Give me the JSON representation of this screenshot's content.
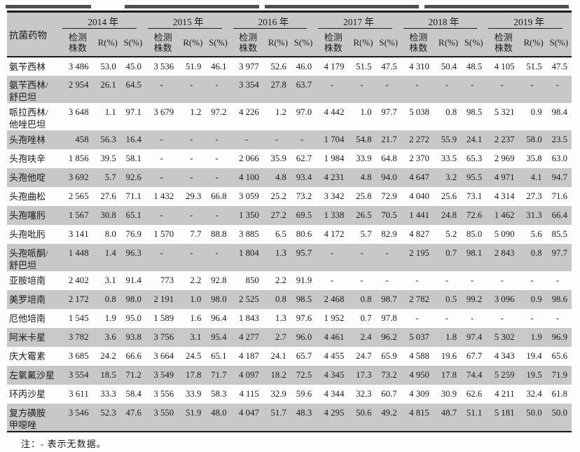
{
  "artifacts": {
    "segments": [
      [
        8,
        122
      ],
      [
        178,
        182
      ],
      [
        190,
        180
      ],
      [
        378,
        220
      ],
      [
        606,
        206
      ]
    ]
  },
  "table": {
    "corner_label": "抗菌药物",
    "years": [
      "2014 年",
      "2015 年",
      "2016 年",
      "2017 年",
      "2018 年",
      "2019 年"
    ],
    "sub": {
      "count": "检测\n株数",
      "r": "R(%)",
      "s": "S(%)"
    },
    "rows": [
      {
        "drug": "氨苄西林",
        "values": [
          "3 486",
          "53.0",
          "45.0",
          "3 536",
          "51.9",
          "46.1",
          "3 977",
          "52.6",
          "46.0",
          "4 179",
          "51.5",
          "47.5",
          "4 310",
          "50.4",
          "48.5",
          "4 105",
          "51.5",
          "47.5"
        ]
      },
      {
        "drug": "氨苄西林/\n舒巴坦",
        "values": [
          "2 954",
          "26.1",
          "64.5",
          "-",
          "-",
          "-",
          "3 354",
          "27.8",
          "63.7",
          "-",
          "-",
          "-",
          "-",
          "-",
          "-",
          "-",
          "-",
          "-"
        ]
      },
      {
        "drug": "哌拉西林/\n他唑巴坦",
        "values": [
          "3 648",
          "1.1",
          "97.1",
          "3 679",
          "1.2",
          "97.2",
          "4 226",
          "1.2",
          "97.0",
          "4 442",
          "1.0",
          "97.7",
          "5 038",
          "0.8",
          "98.5",
          "5 321",
          "0.9",
          "98.4"
        ]
      },
      {
        "drug": "头孢唑林",
        "values": [
          "458",
          "56.3",
          "16.4",
          "-",
          "-",
          "-",
          "-",
          "-",
          "-",
          "1 704",
          "54.8",
          "21.7",
          "2 272",
          "55.9",
          "24.1",
          "2 237",
          "58.0",
          "23.5"
        ]
      },
      {
        "drug": "头孢呋辛",
        "values": [
          "1 856",
          "39.5",
          "58.1",
          "-",
          "-",
          "-",
          "2 066",
          "35.9",
          "62.7",
          "1 984",
          "33.9",
          "64.8",
          "2 370",
          "33.5",
          "65.3",
          "2 969",
          "35.8",
          "63.0"
        ]
      },
      {
        "drug": "头孢他啶",
        "values": [
          "3 692",
          "5.7",
          "92.6",
          "-",
          "-",
          "-",
          "4 100",
          "4.8",
          "93.4",
          "4 231",
          "4.8",
          "94.0",
          "4 647",
          "3.2",
          "95.5",
          "4 971",
          "4.1",
          "94.7"
        ]
      },
      {
        "drug": "头孢曲松",
        "values": [
          "2 565",
          "27.6",
          "71.1",
          "1 432",
          "29.3",
          "66.8",
          "3 059",
          "25.2",
          "73.2",
          "3 342",
          "25.8",
          "72.9",
          "4 040",
          "25.6",
          "73.1",
          "4 314",
          "27.3",
          "71.6"
        ]
      },
      {
        "drug": "头孢噻肟",
        "values": [
          "1 567",
          "30.8",
          "65.1",
          "-",
          "-",
          "-",
          "1 350",
          "27.2",
          "69.5",
          "1 338",
          "26.5",
          "70.5",
          "1 441",
          "24.8",
          "72.6",
          "1 462",
          "31.3",
          "66.4"
        ]
      },
      {
        "drug": "头孢吡肟",
        "values": [
          "3 141",
          "8.0",
          "76.9",
          "1 570",
          "7.7",
          "88.8",
          "3 885",
          "6.5",
          "80.6",
          "4 172",
          "5.7",
          "82.9",
          "4 827",
          "5.2",
          "85.0",
          "5 090",
          "5.6",
          "85.5"
        ]
      },
      {
        "drug": "头孢哌酮/\n舒巴坦",
        "values": [
          "1 448",
          "1.4",
          "96.3",
          "-",
          "-",
          "-",
          "1 804",
          "1.3",
          "95.7",
          "-",
          "-",
          "-",
          "2 195",
          "0.7",
          "98.1",
          "2 843",
          "0.8",
          "97.7"
        ]
      },
      {
        "drug": "亚胺培南",
        "values": [
          "2 402",
          "3.1",
          "91.4",
          "773",
          "2.2",
          "92.8",
          "850",
          "2.2",
          "91.9",
          "-",
          "-",
          "-",
          "-",
          "-",
          "-",
          "-",
          "-",
          "-"
        ]
      },
      {
        "drug": "美罗培南",
        "values": [
          "2 172",
          "0.8",
          "98.0",
          "2 191",
          "1.0",
          "98.0",
          "2 525",
          "0.8",
          "98.5",
          "2 468",
          "0.8",
          "98.7",
          "2 782",
          "0.5",
          "99.2",
          "3 096",
          "0.9",
          "98.6"
        ]
      },
      {
        "drug": "厄他培南",
        "values": [
          "1 545",
          "1.9",
          "95.0",
          "1 589",
          "1.6",
          "96.4",
          "1 843",
          "1.3",
          "97.6",
          "1 952",
          "0.7",
          "97.8",
          "-",
          "-",
          "-",
          "-",
          "-",
          "-"
        ]
      },
      {
        "drug": "阿米卡星",
        "values": [
          "3 782",
          "3.6",
          "93.8",
          "3 756",
          "3.1",
          "95.4",
          "4 277",
          "2.7",
          "96.0",
          "4 461",
          "2.4",
          "96.2",
          "5 037",
          "1.8",
          "97.4",
          "5 302",
          "1.9",
          "96.9"
        ]
      },
      {
        "drug": "庆大霉素",
        "values": [
          "3 685",
          "24.2",
          "66.6",
          "3 664",
          "24.5",
          "65.1",
          "4 187",
          "24.1",
          "65.7",
          "4 455",
          "24.7",
          "65.9",
          "4 588",
          "19.6",
          "67.7",
          "4 343",
          "19.4",
          "65.6"
        ]
      },
      {
        "drug": "左氧氟沙星",
        "values": [
          "3 554",
          "18.5",
          "71.2",
          "3 549",
          "17.8",
          "71.7",
          "4 097",
          "18.2",
          "72.5",
          "4 345",
          "17.3",
          "73.2",
          "4 950",
          "17.8",
          "74.4",
          "5 259",
          "19.5",
          "71.9"
        ]
      },
      {
        "drug": "环丙沙星",
        "values": [
          "3 611",
          "33.3",
          "58.4",
          "3 556",
          "33.9",
          "58.3",
          "4 115",
          "32.9",
          "59.6",
          "4 344",
          "32.3",
          "60.7",
          "4 309",
          "30.9",
          "62.6",
          "4 211",
          "32.4",
          "61.8"
        ]
      },
      {
        "drug": "复方磺胺\n甲噁唑",
        "values": [
          "3 546",
          "52.3",
          "47.6",
          "3 550",
          "51.9",
          "48.0",
          "4 047",
          "51.7",
          "48.3",
          "4 295",
          "50.6",
          "49.2",
          "4 815",
          "48.7",
          "51.1",
          "5 181",
          "50.0",
          "50.0"
        ]
      }
    ],
    "note": "注：- 表示无数据。"
  }
}
